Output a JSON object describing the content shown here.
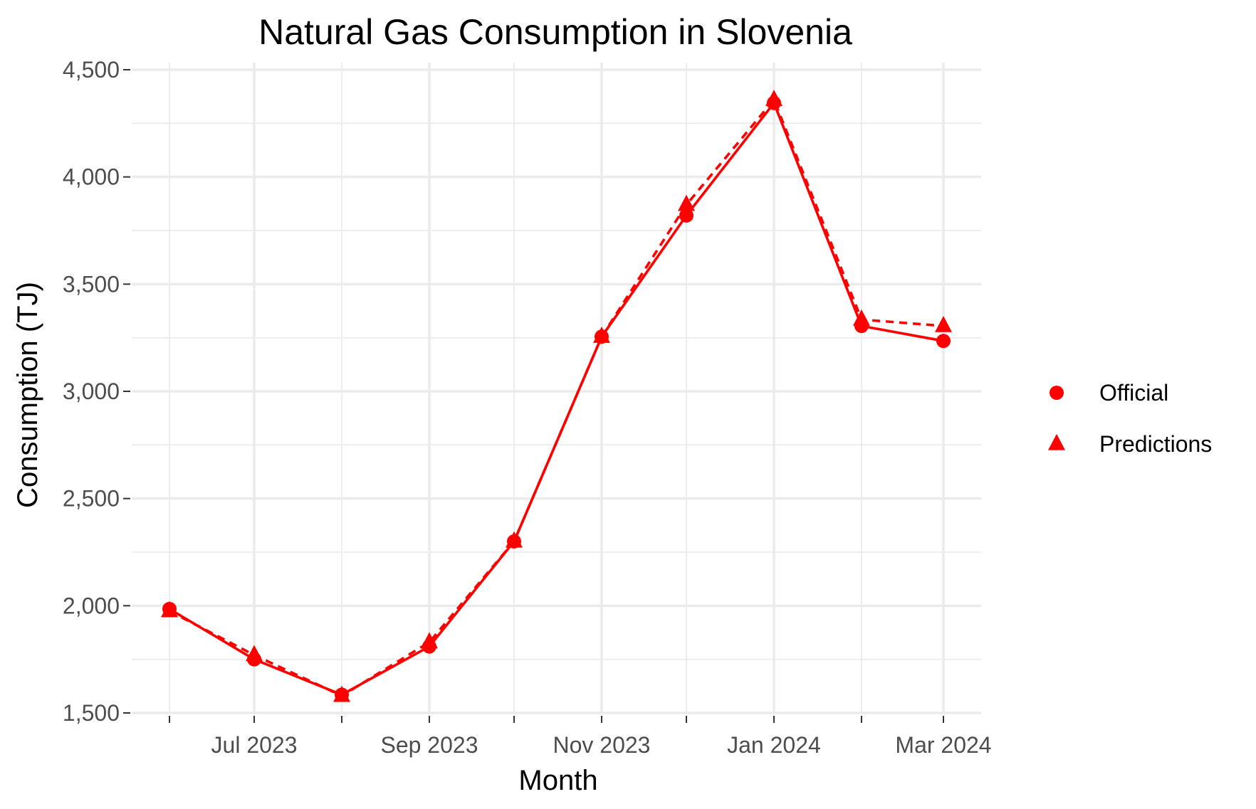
{
  "chart_data": {
    "type": "line",
    "title": "Natural Gas Consumption in Slovenia",
    "xlabel": "Month",
    "ylabel": "Consumption (TJ)",
    "x": [
      "2023-06-01",
      "2023-07-01",
      "2023-08-01",
      "2023-09-01",
      "2023-10-01",
      "2023-11-01",
      "2023-12-01",
      "2024-01-01",
      "2024-02-01",
      "2024-03-01"
    ],
    "x_ticks": [
      "2023-07-01",
      "2023-09-01",
      "2023-11-01",
      "2024-01-01",
      "2024-03-01"
    ],
    "x_tick_labels": [
      "Jul 2023",
      "Sep 2023",
      "Nov 2023",
      "Jan 2024",
      "Mar 2024"
    ],
    "x_minor_ticks": [
      "2023-06-01",
      "2023-08-01",
      "2023-10-01",
      "2023-12-01",
      "2024-02-01"
    ],
    "y_ticks": [
      1500,
      2000,
      2500,
      3000,
      3500,
      4000,
      4500
    ],
    "y_tick_labels": [
      "1,500",
      "2,000",
      "2,500",
      "3,000",
      "3,500",
      "4,000",
      "4,500"
    ],
    "ylim": [
      1500,
      4500
    ],
    "grid": true,
    "legend_position": "right",
    "series": [
      {
        "name": "Official",
        "marker": "circle",
        "line_style": "solid",
        "color": "#ff0000",
        "values": [
          1985,
          1750,
          1585,
          1810,
          2300,
          3255,
          3820,
          4345,
          3305,
          3235
        ]
      },
      {
        "name": "Predictions",
        "marker": "triangle",
        "line_style": "dashed",
        "color": "#ff0000",
        "values": [
          1975,
          1770,
          1580,
          1830,
          2300,
          3255,
          3870,
          4360,
          3335,
          3305
        ]
      }
    ]
  }
}
